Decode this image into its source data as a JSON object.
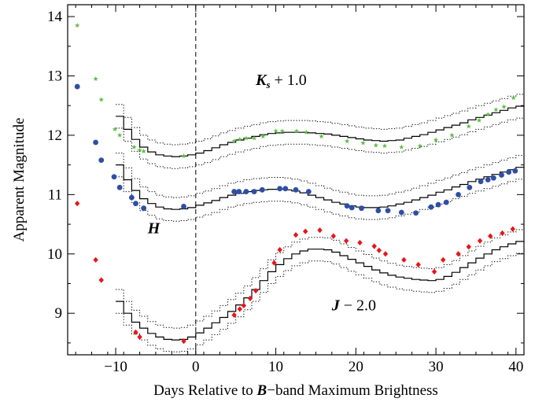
{
  "chart_data": {
    "type": "scatter",
    "xlabel": "Days Relative to",
    "xlabel_band": "B",
    "xlabel_tail": "−band Maximum Brightness",
    "ylabel": "Apparent Magnitude",
    "xlim": [
      -16,
      41
    ],
    "ylim": [
      14.2,
      8.3
    ],
    "y_inverted": true,
    "x_ticks": [
      -10,
      0,
      10,
      20,
      30,
      40
    ],
    "y_ticks": [
      9,
      10,
      11,
      12,
      13,
      14
    ],
    "reference_line_x": 0,
    "annotations": [
      {
        "band": "J",
        "suffix": " − 2.0",
        "x": 17,
        "y": 9.05
      },
      {
        "band": "H",
        "suffix": "",
        "x": -6,
        "y": 10.35
      },
      {
        "band": "K",
        "sub": "s",
        "suffix": " + 1.0",
        "x": 7.5,
        "y": 12.85
      }
    ],
    "series": [
      {
        "band": "J",
        "marker": "diamond",
        "color": "#e8151b",
        "points": [
          [
            -14.8,
            10.85
          ],
          [
            -12.5,
            9.9
          ],
          [
            -11.8,
            9.56
          ],
          [
            -7.5,
            8.68
          ],
          [
            -7,
            8.6
          ],
          [
            -1.5,
            8.53
          ],
          [
            4.8,
            8.97
          ],
          [
            5.5,
            9.07
          ],
          [
            6,
            9.13
          ],
          [
            6.8,
            9.25
          ],
          [
            7.5,
            9.38
          ],
          [
            9.8,
            9.85
          ],
          [
            10.5,
            10.07
          ],
          [
            12.5,
            10.32
          ],
          [
            13.7,
            10.38
          ],
          [
            15.5,
            10.4
          ],
          [
            17.2,
            10.3
          ],
          [
            18.8,
            10.22
          ],
          [
            20.5,
            10.19
          ],
          [
            22.3,
            10.13
          ],
          [
            22.9,
            10.06
          ],
          [
            23.7,
            10.0
          ],
          [
            26,
            9.9
          ],
          [
            27.8,
            9.82
          ],
          [
            29.8,
            9.7
          ],
          [
            30.9,
            9.9
          ],
          [
            32.8,
            10.0
          ],
          [
            34.1,
            10.12
          ],
          [
            35.5,
            10.22
          ],
          [
            36.8,
            10.3
          ],
          [
            38.3,
            10.35
          ],
          [
            39.6,
            10.42
          ]
        ]
      },
      {
        "band": "H",
        "marker": "circle",
        "color": "#2f4ea4",
        "points": [
          [
            -14.8,
            12.82
          ],
          [
            -12.5,
            11.88
          ],
          [
            -11.8,
            11.58
          ],
          [
            -10.2,
            11.3
          ],
          [
            -9.5,
            11.12
          ],
          [
            -8,
            10.95
          ],
          [
            -7.5,
            10.85
          ],
          [
            -6.5,
            10.77
          ],
          [
            -1.5,
            10.8
          ],
          [
            4.8,
            11.05
          ],
          [
            5.4,
            11.05
          ],
          [
            6.3,
            11.05
          ],
          [
            7.3,
            11.05
          ],
          [
            8.3,
            11.08
          ],
          [
            10.5,
            11.1
          ],
          [
            11.2,
            11.1
          ],
          [
            12.5,
            11.08
          ],
          [
            14.1,
            11.05
          ],
          [
            18.9,
            10.81
          ],
          [
            19.5,
            10.78
          ],
          [
            20.7,
            10.77
          ],
          [
            22.8,
            10.73
          ],
          [
            24,
            10.73
          ],
          [
            25.7,
            10.7
          ],
          [
            27.5,
            10.69
          ],
          [
            29.4,
            10.79
          ],
          [
            30.3,
            10.83
          ],
          [
            31.3,
            10.87
          ],
          [
            32.8,
            11.0
          ],
          [
            34.2,
            11.12
          ],
          [
            35.6,
            11.22
          ],
          [
            36.5,
            11.25
          ],
          [
            37.2,
            11.28
          ],
          [
            38.2,
            11.33
          ],
          [
            39.1,
            11.38
          ],
          [
            39.9,
            11.4
          ]
        ]
      },
      {
        "band": "Ks",
        "marker": "star",
        "color": "#5cbd44",
        "points": [
          [
            -14.8,
            13.85
          ],
          [
            -12.5,
            12.95
          ],
          [
            -11.8,
            12.6
          ],
          [
            -10.1,
            12.1
          ],
          [
            -9.5,
            12.0
          ],
          [
            -7.7,
            11.8
          ],
          [
            -7.0,
            11.75
          ],
          [
            -6.5,
            11.73
          ],
          [
            -1.5,
            11.65
          ],
          [
            4.8,
            11.9
          ],
          [
            5.5,
            11.93
          ],
          [
            6.3,
            11.95
          ],
          [
            7.3,
            11.95
          ],
          [
            8.4,
            11.98
          ],
          [
            10,
            12.07
          ],
          [
            10.8,
            12.07
          ],
          [
            12.6,
            12.07
          ],
          [
            13.8,
            12.05
          ],
          [
            15.7,
            11.98
          ],
          [
            18.9,
            11.9
          ],
          [
            20.9,
            11.87
          ],
          [
            22.5,
            11.83
          ],
          [
            23.6,
            11.82
          ],
          [
            25.7,
            11.8
          ],
          [
            28,
            11.82
          ],
          [
            30,
            11.92
          ],
          [
            32,
            12.0
          ],
          [
            34.1,
            12.15
          ],
          [
            35.4,
            12.25
          ],
          [
            36.5,
            12.35
          ],
          [
            37.5,
            12.43
          ],
          [
            38.5,
            12.48
          ],
          [
            39.7,
            12.63
          ]
        ]
      }
    ],
    "templates": [
      {
        "band": "J",
        "type": "step",
        "dotted_offset": 0.2,
        "points": [
          [
            -10,
            9.2
          ],
          [
            -9,
            9.0
          ],
          [
            -8,
            8.85
          ],
          [
            -7,
            8.75
          ],
          [
            -6,
            8.66
          ],
          [
            -5,
            8.6
          ],
          [
            -4,
            8.56
          ],
          [
            -3,
            8.55
          ],
          [
            -2,
            8.56
          ],
          [
            -1,
            8.6
          ],
          [
            0,
            8.67
          ],
          [
            1,
            8.75
          ],
          [
            2,
            8.84
          ],
          [
            3,
            8.93
          ],
          [
            4,
            9.03
          ],
          [
            5,
            9.14
          ],
          [
            6,
            9.26
          ],
          [
            7,
            9.4
          ],
          [
            8,
            9.55
          ],
          [
            9,
            9.7
          ],
          [
            10,
            9.82
          ],
          [
            11,
            9.92
          ],
          [
            12,
            10.0
          ],
          [
            13,
            10.05
          ],
          [
            14,
            10.08
          ],
          [
            15,
            10.08
          ],
          [
            16,
            10.07
          ],
          [
            17,
            10.03
          ],
          [
            18,
            9.97
          ],
          [
            19,
            9.91
          ],
          [
            20,
            9.85
          ],
          [
            21,
            9.79
          ],
          [
            22,
            9.73
          ],
          [
            23,
            9.68
          ],
          [
            24,
            9.64
          ],
          [
            25,
            9.61
          ],
          [
            26,
            9.59
          ],
          [
            27,
            9.57
          ],
          [
            28,
            9.56
          ],
          [
            29,
            9.55
          ],
          [
            30,
            9.57
          ],
          [
            31,
            9.62
          ],
          [
            32,
            9.69
          ],
          [
            33,
            9.77
          ],
          [
            34,
            9.85
          ],
          [
            35,
            9.93
          ],
          [
            36,
            10.0
          ],
          [
            37,
            10.07
          ],
          [
            38,
            10.12
          ],
          [
            39,
            10.17
          ],
          [
            40,
            10.21
          ],
          [
            41,
            10.21
          ]
        ]
      },
      {
        "band": "H",
        "type": "step",
        "dotted_offset": 0.2,
        "points": [
          [
            -10,
            11.5
          ],
          [
            -9,
            11.25
          ],
          [
            -8,
            11.07
          ],
          [
            -7,
            10.93
          ],
          [
            -6,
            10.85
          ],
          [
            -5,
            10.79
          ],
          [
            -4,
            10.76
          ],
          [
            -3,
            10.75
          ],
          [
            -2,
            10.76
          ],
          [
            -1,
            10.78
          ],
          [
            0,
            10.82
          ],
          [
            1,
            10.86
          ],
          [
            2,
            10.9
          ],
          [
            3,
            10.95
          ],
          [
            4,
            10.99
          ],
          [
            5,
            11.02
          ],
          [
            6,
            11.05
          ],
          [
            7,
            11.07
          ],
          [
            8,
            11.08
          ],
          [
            9,
            11.09
          ],
          [
            10,
            11.09
          ],
          [
            11,
            11.08
          ],
          [
            12,
            11.06
          ],
          [
            13,
            11.03
          ],
          [
            14,
            10.99
          ],
          [
            15,
            10.95
          ],
          [
            16,
            10.91
          ],
          [
            17,
            10.87
          ],
          [
            18,
            10.84
          ],
          [
            19,
            10.81
          ],
          [
            20,
            10.79
          ],
          [
            21,
            10.78
          ],
          [
            22,
            10.78
          ],
          [
            23,
            10.79
          ],
          [
            24,
            10.81
          ],
          [
            25,
            10.84
          ],
          [
            26,
            10.87
          ],
          [
            27,
            10.91
          ],
          [
            28,
            10.95
          ],
          [
            29,
            10.99
          ],
          [
            30,
            11.04
          ],
          [
            31,
            11.08
          ],
          [
            32,
            11.13
          ],
          [
            33,
            11.17
          ],
          [
            34,
            11.22
          ],
          [
            35,
            11.26
          ],
          [
            36,
            11.3
          ],
          [
            37,
            11.34
          ],
          [
            38,
            11.38
          ],
          [
            39,
            11.42
          ],
          [
            40,
            11.46
          ],
          [
            41,
            11.47
          ]
        ]
      },
      {
        "band": "Ks",
        "type": "step",
        "dotted_offset": 0.2,
        "points": [
          [
            -10,
            12.32
          ],
          [
            -9,
            12.1
          ],
          [
            -8,
            11.93
          ],
          [
            -7,
            11.8
          ],
          [
            -6,
            11.72
          ],
          [
            -5,
            11.67
          ],
          [
            -4,
            11.65
          ],
          [
            -3,
            11.64
          ],
          [
            -2,
            11.65
          ],
          [
            -1,
            11.67
          ],
          [
            0,
            11.7
          ],
          [
            1,
            11.74
          ],
          [
            2,
            11.79
          ],
          [
            3,
            11.84
          ],
          [
            4,
            11.88
          ],
          [
            5,
            11.92
          ],
          [
            6,
            11.95
          ],
          [
            7,
            11.98
          ],
          [
            8,
            12.01
          ],
          [
            9,
            12.03
          ],
          [
            10,
            12.04
          ],
          [
            11,
            12.05
          ],
          [
            12,
            12.05
          ],
          [
            13,
            12.05
          ],
          [
            14,
            12.04
          ],
          [
            15,
            12.03
          ],
          [
            16,
            12.02
          ],
          [
            17,
            12.0
          ],
          [
            18,
            11.98
          ],
          [
            19,
            11.96
          ],
          [
            20,
            11.94
          ],
          [
            21,
            11.92
          ],
          [
            22,
            11.91
          ],
          [
            23,
            11.9
          ],
          [
            24,
            11.91
          ],
          [
            25,
            11.92
          ],
          [
            26,
            11.95
          ],
          [
            27,
            11.98
          ],
          [
            28,
            12.01
          ],
          [
            29,
            12.05
          ],
          [
            30,
            12.09
          ],
          [
            31,
            12.13
          ],
          [
            32,
            12.17
          ],
          [
            33,
            12.21
          ],
          [
            34,
            12.26
          ],
          [
            35,
            12.3
          ],
          [
            36,
            12.34
          ],
          [
            37,
            12.38
          ],
          [
            38,
            12.42
          ],
          [
            39,
            12.46
          ],
          [
            40,
            12.49
          ],
          [
            41,
            12.49
          ]
        ]
      }
    ]
  }
}
